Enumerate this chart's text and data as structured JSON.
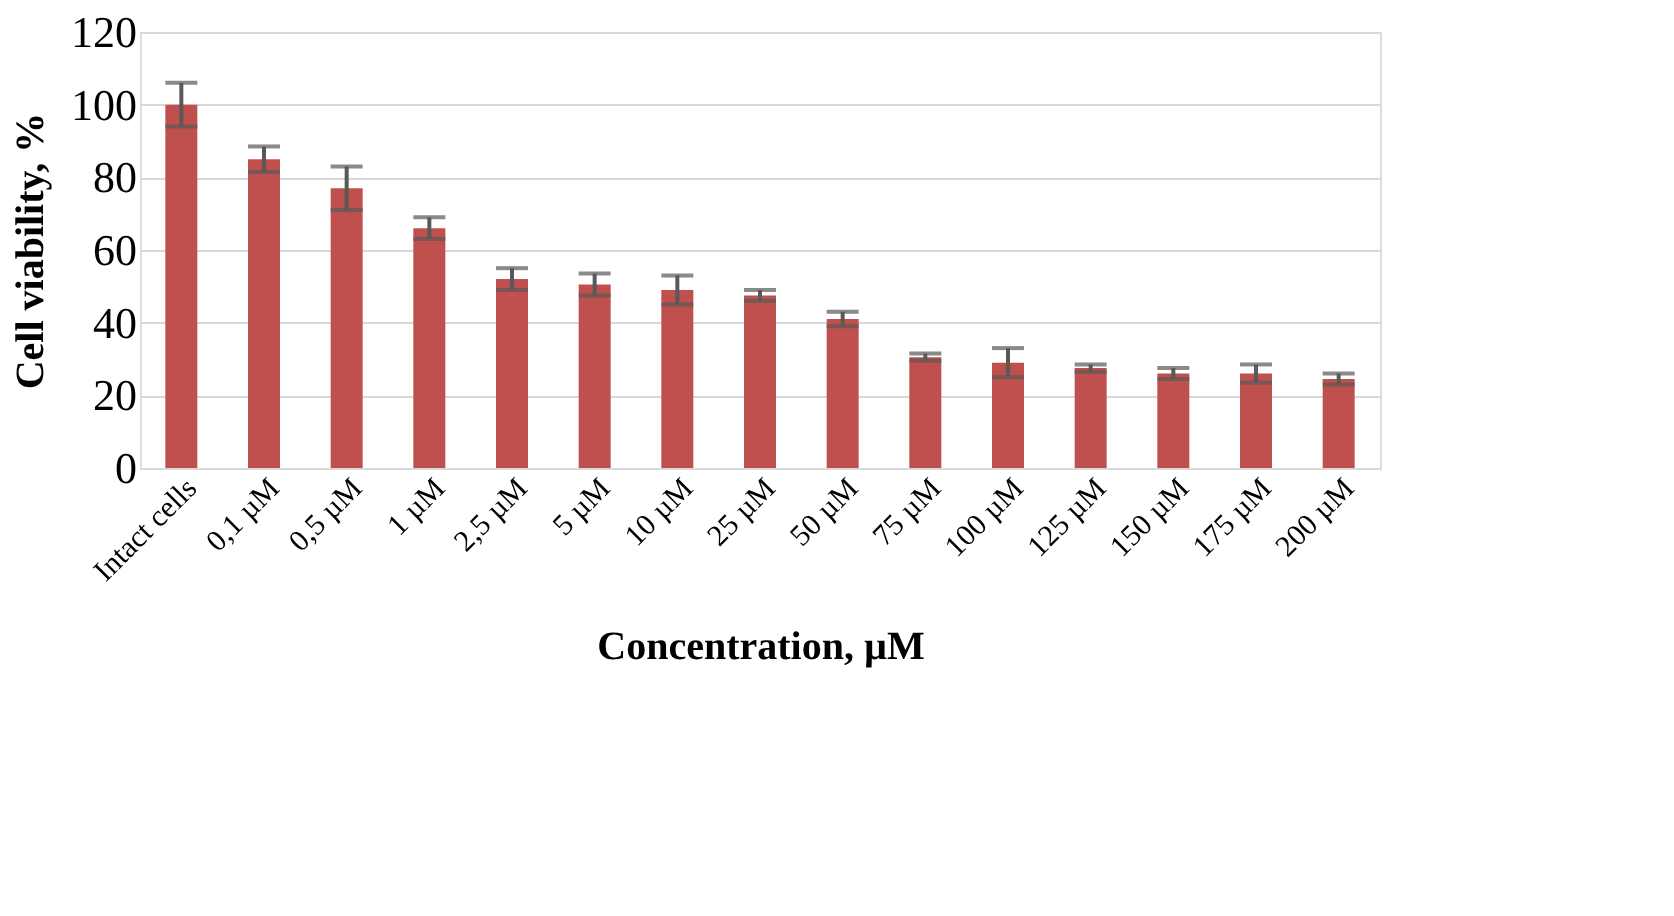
{
  "chart_data": {
    "type": "bar",
    "xlabel": "Concentration, µM",
    "ylabel": "Cell viability, %",
    "categories": [
      "Intact cells",
      "0,1 µM",
      "0,5 µM",
      "1 µM",
      "2,5 µM",
      "5 µM",
      "10 µM",
      "25 µM",
      "50 µM",
      "75 µM",
      "100 µM",
      "125 µM",
      "150 µM",
      "175 µM",
      "200 µM"
    ],
    "values": [
      100,
      85,
      77,
      66,
      52,
      50.5,
      49,
      47.5,
      41,
      30.5,
      29,
      27.5,
      26,
      26,
      24.5
    ],
    "errors": [
      6,
      3.5,
      6,
      3,
      3,
      3,
      4,
      1.5,
      2,
      1,
      4,
      1,
      1.5,
      2.5,
      1.5
    ],
    "color": "#c0504d",
    "ylim": [
      0,
      120
    ],
    "yticks": [
      0,
      20,
      40,
      60,
      80,
      100,
      120
    ],
    "grid": "y"
  }
}
